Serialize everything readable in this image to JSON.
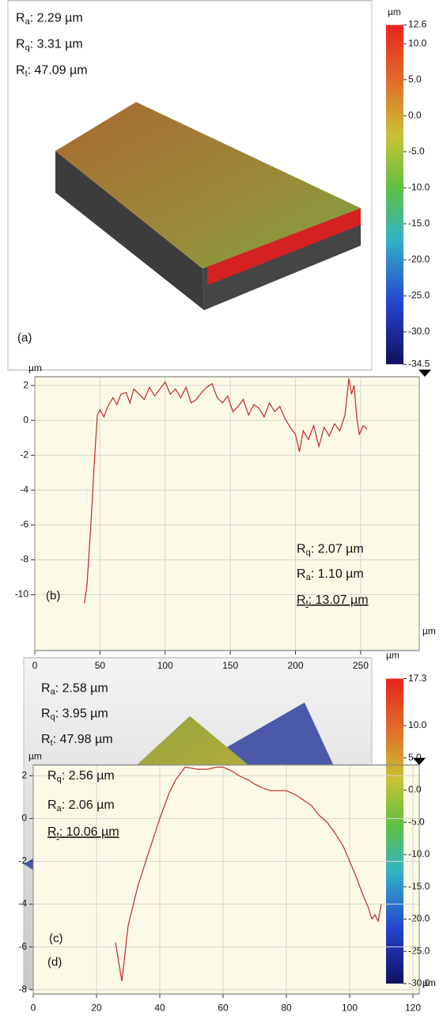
{
  "chart_data": [
    {
      "type": "surface",
      "panel_label": "(a)",
      "unit": "µm",
      "annotations": [
        {
          "symbol": "R",
          "subscript": "a",
          "text": ": 2.29 µm"
        },
        {
          "symbol": "R",
          "subscript": "q",
          "text": ": 3.31 µm"
        },
        {
          "symbol": "R",
          "subscript": "t",
          "text": ": 47.09 µm"
        }
      ],
      "clim": [
        -34.5,
        12.6
      ],
      "cticks": [
        12.6,
        {
          "value": 10,
          "label": "10.0"
        },
        {
          "value": 5,
          "label": "5.0"
        },
        {
          "value": 0,
          "label": "0.0"
        },
        {
          "value": -5,
          "label": "-5.0"
        },
        {
          "value": -10,
          "label": "-10.0"
        },
        {
          "value": -15,
          "label": "-15.0"
        },
        {
          "value": -20,
          "label": "-20.0"
        },
        {
          "value": -25,
          "label": "-25.0"
        },
        {
          "value": -30,
          "label": "-30.0"
        },
        -34.5
      ]
    },
    {
      "type": "line",
      "panel_label": "(b)",
      "y_unit": "µm",
      "x_unit": "µm",
      "annotations": [
        {
          "symbol": "R",
          "subscript": "q",
          "text": ": 2.07 µm"
        },
        {
          "symbol": "R",
          "subscript": "a",
          "text": ": 1.10 µm"
        },
        {
          "symbol": "R",
          "subscript": "t",
          "text": ": 13.07 µm",
          "underline": true
        }
      ],
      "x": [
        38,
        40,
        43,
        46,
        48,
        50,
        53,
        56,
        60,
        63,
        66,
        70,
        73,
        76,
        80,
        84,
        88,
        92,
        96,
        100,
        104,
        108,
        112,
        116,
        120,
        124,
        128,
        132,
        136,
        140,
        144,
        148,
        152,
        156,
        160,
        164,
        168,
        172,
        176,
        180,
        184,
        188,
        192,
        196,
        200,
        203,
        206,
        210,
        214,
        218,
        222,
        226,
        230,
        234,
        238,
        241,
        243,
        245,
        247,
        249,
        252,
        255
      ],
      "series": [
        {
          "color": "#c0282a",
          "values": [
            -10.5,
            -9.5,
            -6,
            -2,
            0.3,
            0.6,
            0.2,
            0.8,
            1.3,
            0.9,
            1.5,
            1.6,
            1.0,
            1.8,
            1.5,
            1.2,
            1.9,
            1.4,
            1.8,
            2.2,
            1.5,
            1.8,
            1.3,
            1.9,
            1.0,
            1.2,
            1.6,
            1.9,
            2.1,
            1.3,
            1.0,
            1.4,
            0.5,
            0.8,
            1.2,
            0.3,
            0.9,
            0.7,
            0.2,
            1.0,
            0.5,
            0.8,
            0.1,
            -0.4,
            -0.8,
            -1.8,
            -0.6,
            -1.1,
            -0.3,
            -1.5,
            -0.4,
            -0.9,
            -0.2,
            -0.6,
            0.3,
            2.4,
            1.5,
            2.0,
            0.2,
            -0.8,
            -0.3,
            -0.5
          ]
        }
      ],
      "xlim": [
        0,
        295
      ],
      "ylim": [
        -13.2,
        2.5
      ],
      "xticks": [
        0,
        50,
        100,
        150,
        200,
        250
      ],
      "yticks": [
        -10,
        -8,
        -6,
        -4,
        -2,
        0,
        2
      ],
      "grid": true
    },
    {
      "type": "surface",
      "panel_label": "(c)",
      "unit": "µm",
      "annotations": [
        {
          "symbol": "R",
          "subscript": "a",
          "text": ": 2.58 µm"
        },
        {
          "symbol": "R",
          "subscript": "q",
          "text": ": 3.95 µm"
        },
        {
          "symbol": "R",
          "subscript": "t",
          "text": ": 47.98 µm"
        }
      ],
      "clim": [
        -30.0,
        17.3
      ],
      "cticks": [
        17.3,
        {
          "value": 10,
          "label": "10.0"
        },
        {
          "value": 5,
          "label": "5.0"
        },
        {
          "value": 0,
          "label": "0.0"
        },
        {
          "value": -5,
          "label": "-5.0"
        },
        {
          "value": -10,
          "label": "-10.0"
        },
        {
          "value": -15,
          "label": "-15.0"
        },
        {
          "value": -20,
          "label": "-20.0"
        },
        {
          "value": -25,
          "label": "-25.0"
        },
        {
          "value": -30,
          "label": "-30.0"
        }
      ]
    },
    {
      "type": "line",
      "panel_label": "(d)",
      "y_unit": "µm",
      "x_unit": "µm",
      "annotations": [
        {
          "symbol": "R",
          "subscript": "q",
          "text": ": 2.56 µm"
        },
        {
          "symbol": "R",
          "subscript": "a",
          "text": ": 2.06 µm"
        },
        {
          "symbol": "R",
          "subscript": "t",
          "text": ": 10.06 µm",
          "underline": true
        }
      ],
      "x": [
        26,
        28,
        30,
        33,
        36,
        40,
        43,
        45,
        48,
        52,
        55,
        58,
        60,
        63,
        65,
        68,
        70,
        73,
        75,
        78,
        80,
        83,
        85,
        88,
        90,
        93,
        95,
        98,
        100,
        102,
        104,
        106,
        107,
        108,
        109,
        110
      ],
      "series": [
        {
          "color": "#c0282a",
          "values": [
            -5.8,
            -7.6,
            -5.0,
            -3.2,
            -1.8,
            0.0,
            1.2,
            1.8,
            2.4,
            2.3,
            2.3,
            2.4,
            2.4,
            2.2,
            2.0,
            1.8,
            1.6,
            1.4,
            1.3,
            1.3,
            1.3,
            1.1,
            0.9,
            0.6,
            0.2,
            -0.2,
            -0.6,
            -1.3,
            -2.0,
            -2.7,
            -3.5,
            -4.2,
            -4.7,
            -4.5,
            -4.8,
            -4.0
          ]
        }
      ],
      "xlim": [
        0,
        122
      ],
      "ylim": [
        -8.2,
        2.5
      ],
      "xticks": [
        0,
        20,
        40,
        60,
        80,
        100,
        120
      ],
      "yticks": [
        -8,
        -6,
        -4,
        -2,
        0,
        2
      ],
      "grid": true
    }
  ]
}
